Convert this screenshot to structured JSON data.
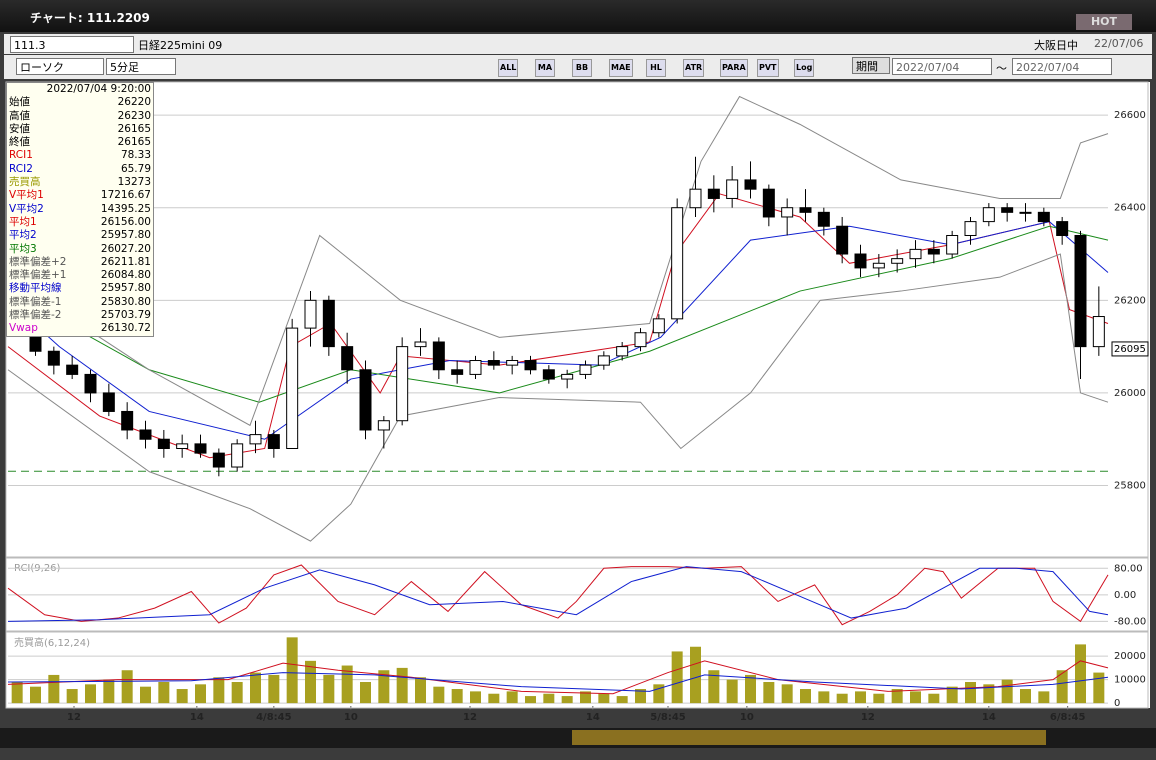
{
  "window": {
    "title": "チャート: 111.2209",
    "hot": "HOT"
  },
  "toolbar": {
    "code": "111.3",
    "name": "日経225mini 09",
    "market": "大阪日中",
    "date": "22/07/06",
    "style": "ローソク",
    "period": "5分足",
    "range_button": "期間",
    "from": "2022/07/04",
    "tilde": "〜",
    "to": "2022/07/04",
    "buttons": [
      "ALL",
      "MA",
      "BB",
      "MAE",
      "HL",
      "ATR",
      "PARA",
      "PVT",
      "Log"
    ]
  },
  "info": {
    "header": "2022/07/04 9:20:00",
    "rows": [
      [
        "始値",
        "26220",
        "#000"
      ],
      [
        "高値",
        "26230",
        "#000"
      ],
      [
        "安値",
        "26165",
        "#000"
      ],
      [
        "終値",
        "26165",
        "#000"
      ],
      [
        "RCI1",
        "78.33",
        "#d00"
      ],
      [
        "RCI2",
        "65.79",
        "#00c"
      ],
      [
        "売買高",
        "13273",
        "#9a9a00"
      ],
      [
        "V平均1",
        "17216.67",
        "#d00"
      ],
      [
        "V平均2",
        "14395.25",
        "#00c"
      ],
      [
        "平均1",
        "26156.00",
        "#d00"
      ],
      [
        "平均2",
        "25957.80",
        "#00c"
      ],
      [
        "平均3",
        "26027.20",
        "#070"
      ],
      [
        "標準偏差+2",
        "26211.81",
        "#555"
      ],
      [
        "標準偏差+1",
        "26084.80",
        "#555"
      ],
      [
        "移動平均線",
        "25957.80",
        "#00c"
      ],
      [
        "標準偏差-1",
        "25830.80",
        "#555"
      ],
      [
        "標準偏差-2",
        "25703.79",
        "#555"
      ],
      [
        "Vwap",
        "26130.72",
        "#c0c"
      ]
    ]
  },
  "chart_data": [
    {
      "type": "candlestick",
      "ylim": [
        25650,
        26665
      ],
      "yticks": [
        25800,
        26000,
        26200,
        26400,
        26600
      ],
      "xlim": [
        0,
        60
      ],
      "grid": true,
      "xticks": [
        {
          "value": 3.6,
          "label": "12"
        },
        {
          "value": 10.3,
          "label": "14"
        },
        {
          "value": 14.5,
          "label": "4/8:45"
        },
        {
          "value": 18.7,
          "label": "10"
        },
        {
          "value": 25.2,
          "label": "12"
        },
        {
          "value": 31.9,
          "label": "14"
        },
        {
          "value": 36,
          "label": "5/8:45"
        },
        {
          "value": 40.3,
          "label": "10"
        },
        {
          "value": 46.9,
          "label": "12"
        },
        {
          "value": 53.5,
          "label": "14"
        },
        {
          "value": 57.8,
          "label": "6/8:45"
        }
      ],
      "open": [
        26160,
        26140,
        26090,
        26060,
        26040,
        26000,
        25960,
        25920,
        25900,
        25880,
        25890,
        25870,
        25840,
        25890,
        25910,
        25880,
        26140,
        26200,
        26100,
        26050,
        25920,
        25940,
        26100,
        26110,
        26050,
        26040,
        26070,
        26060,
        26070,
        26050,
        26030,
        26040,
        26060,
        26080,
        26100,
        26130,
        26160,
        26400,
        26440,
        26420,
        26460,
        26440,
        26380,
        26400,
        26390,
        26360,
        26300,
        26270,
        26280,
        26290,
        26310,
        26300,
        26340,
        26370,
        26400,
        26390,
        26390,
        26370,
        26340,
        26100
      ],
      "high": [
        26180,
        26150,
        26100,
        26080,
        26050,
        26020,
        25980,
        25940,
        25920,
        25910,
        25910,
        25880,
        25900,
        25940,
        25920,
        26160,
        26220,
        26210,
        26130,
        26070,
        25950,
        26120,
        26140,
        26120,
        26070,
        26080,
        26090,
        26080,
        26080,
        26060,
        26050,
        26070,
        26090,
        26110,
        26140,
        26170,
        26420,
        26510,
        26470,
        26490,
        26500,
        26450,
        26420,
        26440,
        26400,
        26380,
        26320,
        26300,
        26310,
        26330,
        26330,
        26350,
        26380,
        26410,
        26410,
        26410,
        26400,
        26380,
        26350,
        26230
      ],
      "low": [
        26130,
        26080,
        26040,
        26030,
        25980,
        25950,
        25900,
        25880,
        25860,
        25860,
        25860,
        25820,
        25830,
        25870,
        25860,
        25880,
        26100,
        26080,
        26020,
        25900,
        25880,
        25930,
        26080,
        26030,
        26020,
        26030,
        26050,
        26040,
        26040,
        26020,
        26010,
        26030,
        26050,
        26070,
        26090,
        26120,
        26150,
        26380,
        26390,
        26400,
        26420,
        26360,
        26340,
        26370,
        26340,
        26280,
        26250,
        26250,
        26260,
        26270,
        26280,
        26290,
        26320,
        26360,
        26370,
        26370,
        26360,
        26320,
        26030,
        26080
      ],
      "close": [
        26140,
        26090,
        26060,
        26040,
        26000,
        25960,
        25920,
        25900,
        25880,
        25890,
        25870,
        25840,
        25890,
        25910,
        25880,
        26140,
        26200,
        26100,
        26050,
        25920,
        25940,
        26100,
        26110,
        26050,
        26040,
        26070,
        26060,
        26070,
        26050,
        26030,
        26040,
        26060,
        26080,
        26100,
        26130,
        26160,
        26400,
        26440,
        26420,
        26460,
        26440,
        26380,
        26400,
        26390,
        26360,
        26300,
        26270,
        26280,
        26290,
        26310,
        26300,
        26340,
        26370,
        26400,
        26390,
        26390,
        26370,
        26340,
        26100,
        26165
      ],
      "lines": [
        {
          "color": "#d01020",
          "x": [
            0,
            5,
            11,
            14,
            15.4,
            17.6,
            20.3,
            21.4,
            26.8,
            35,
            36.4,
            38.8,
            43.2,
            45.9,
            51.4,
            56.8,
            57.9,
            60
          ],
          "values": [
            26100,
            25950,
            25860,
            25880,
            26100,
            26150,
            26000,
            26080,
            26060,
            26110,
            26300,
            26430,
            26380,
            26280,
            26320,
            26370,
            26180,
            26150
          ]
        },
        {
          "color": "#1020d0",
          "x": [
            0,
            2.8,
            7.7,
            14,
            18.7,
            24.1,
            32.3,
            35.6,
            40.5,
            45.9,
            51.4,
            56.8,
            60
          ],
          "values": [
            26200,
            26100,
            25960,
            25900,
            26030,
            26070,
            26060,
            26120,
            26330,
            26360,
            26320,
            26370,
            26260
          ]
        },
        {
          "color": "#1a8a1a",
          "x": [
            0,
            7.7,
            13.7,
            18.7,
            26.8,
            35,
            43.2,
            51.4,
            56.8,
            60
          ],
          "values": [
            26220,
            26050,
            25980,
            26050,
            26000,
            26090,
            26220,
            26290,
            26360,
            26330
          ]
        },
        {
          "color": "#888",
          "x": [
            0,
            7.7,
            13.2,
            17,
            21.4,
            26.8,
            35,
            37.8,
            39.9,
            43.2,
            48.7,
            54.1,
            57.4,
            58.5,
            60
          ],
          "values": [
            26250,
            26050,
            25930,
            26340,
            26200,
            26120,
            26150,
            26500,
            26640,
            26580,
            26460,
            26420,
            26420,
            26540,
            26560
          ]
        },
        {
          "color": "#888",
          "x": [
            0,
            7.7,
            13.2,
            16.5,
            18.7,
            21.4,
            26.8,
            34.5,
            36.7,
            40.5,
            44.3,
            48.7,
            54.1,
            57.4,
            58.5,
            60
          ],
          "values": [
            26050,
            25830,
            25750,
            25680,
            25760,
            25950,
            25990,
            25980,
            25880,
            26000,
            26200,
            26220,
            26250,
            26300,
            26000,
            25980
          ]
        }
      ],
      "hline": {
        "value": 25830.8,
        "color": "#2a8a2a"
      },
      "last_price": 26095
    },
    {
      "type": "rci",
      "title": "RCI(9,26)",
      "ylim": [
        -100,
        105
      ],
      "yticks": [
        {
          "value": 80,
          "label": "80.00"
        },
        {
          "value": 0,
          "label": "0.00"
        },
        {
          "value": -80,
          "label": "-80.00"
        }
      ],
      "xlim": [
        0,
        60
      ],
      "lines": [
        {
          "color": "#d01020",
          "x": [
            0,
            2,
            4,
            6,
            8,
            10,
            11.5,
            13,
            14.5,
            16,
            18,
            20,
            22,
            24,
            26,
            28,
            30,
            31,
            32.5,
            34,
            36,
            38,
            40,
            42,
            44,
            45.5,
            47,
            48.5,
            50,
            51,
            52,
            54,
            56,
            57,
            58.5,
            60
          ],
          "values": [
            20,
            -60,
            -80,
            -70,
            -40,
            10,
            -85,
            -40,
            60,
            90,
            -20,
            -60,
            40,
            -50,
            70,
            -30,
            -70,
            -20,
            80,
            85,
            85,
            80,
            85,
            -20,
            30,
            -90,
            -50,
            0,
            80,
            70,
            -10,
            80,
            80,
            -20,
            -80,
            60
          ]
        },
        {
          "color": "#1020d0",
          "x": [
            0,
            5,
            11,
            14,
            17,
            20,
            23,
            27,
            31,
            34,
            37,
            40,
            43,
            46,
            49,
            51,
            53,
            55,
            57,
            59,
            60
          ],
          "values": [
            -80,
            -75,
            -60,
            20,
            75,
            30,
            -30,
            -20,
            -60,
            40,
            85,
            70,
            0,
            -70,
            -40,
            20,
            80,
            80,
            70,
            -50,
            -60
          ]
        }
      ]
    },
    {
      "type": "bar",
      "title": "売買高(6,12,24)",
      "ylim": [
        -800,
        29000
      ],
      "yticks": [
        0,
        10000,
        20000
      ],
      "xlim": [
        0,
        60
      ],
      "color": "#a8a020",
      "values": [
        9000,
        7000,
        12000,
        6000,
        8000,
        10000,
        14000,
        7000,
        9000,
        6000,
        8000,
        11000,
        9000,
        13000,
        12000,
        28000,
        18000,
        12000,
        16000,
        9000,
        14000,
        15000,
        11000,
        7000,
        6000,
        5000,
        4000,
        5000,
        3000,
        4000,
        3000,
        5000,
        4000,
        3000,
        6000,
        8000,
        22000,
        24000,
        14000,
        10000,
        12000,
        9000,
        8000,
        6000,
        5000,
        4000,
        5000,
        4000,
        6000,
        5000,
        4000,
        7000,
        9000,
        8000,
        10000,
        6000,
        5000,
        14000,
        25000,
        13000
      ],
      "lines": [
        {
          "color": "#d01020",
          "x": [
            0,
            6,
            12,
            15,
            18,
            22,
            28,
            33,
            36,
            38,
            42,
            48,
            54,
            57,
            58.5,
            60
          ],
          "values": [
            8000,
            10000,
            10000,
            17000,
            14000,
            11000,
            5000,
            4000,
            13000,
            18000,
            10000,
            5000,
            7000,
            10000,
            18000,
            15000
          ]
        },
        {
          "color": "#1020d0",
          "x": [
            0,
            10,
            15,
            20,
            28,
            35,
            38,
            44,
            52,
            57,
            60
          ],
          "values": [
            9000,
            9500,
            13000,
            12000,
            7000,
            5000,
            12000,
            9000,
            6000,
            8000,
            11000
          ]
        }
      ]
    }
  ]
}
